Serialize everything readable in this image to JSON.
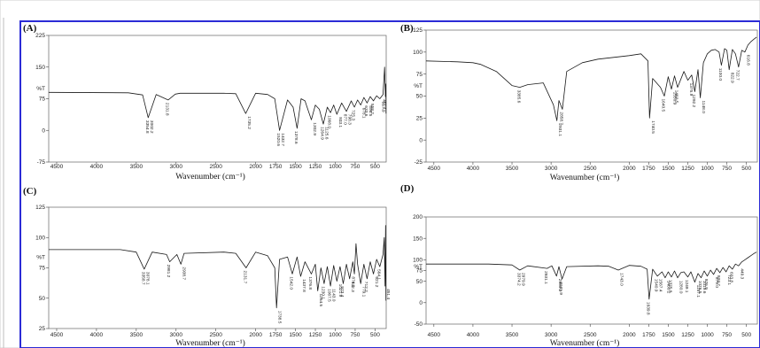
{
  "chart_data": [
    {
      "type": "line",
      "panel": "(A)",
      "xlabel": "Wavenumber (cm⁻¹)",
      "ylabel": "%T",
      "xlim": [
        4600,
        360
      ],
      "ylim": [
        -75,
        225
      ],
      "xticks": [
        "4500",
        "4000",
        "3500",
        "3000",
        "2500",
        "2000",
        "1750",
        "1500",
        "1250",
        "1000",
        "750",
        "500"
      ],
      "xtick_values": [
        4500,
        4000,
        3500,
        3000,
        2500,
        2000,
        1750,
        1500,
        1250,
        1000,
        750,
        500
      ],
      "yticks": [
        "225",
        "150",
        "%T",
        "75",
        "0",
        "-75"
      ],
      "ytick_values": [
        225,
        150,
        100,
        75,
        0,
        -75
      ],
      "baseline": 90,
      "series": [
        {
          "x": [
            4600,
            3600,
            3420,
            3350,
            3250,
            3100,
            3010,
            2950,
            2400,
            2250,
            2125,
            2000,
            1850,
            1760,
            1700,
            1600,
            1530,
            1480,
            1430,
            1380,
            1300,
            1250,
            1200,
            1150,
            1100,
            1060,
            1020,
            980,
            920,
            860,
            800,
            760,
            720,
            680,
            640,
            600,
            560,
            520,
            480,
            440,
            400,
            380,
            370,
            365,
            362
          ],
          "y": [
            90,
            89,
            84,
            30,
            85,
            72,
            86,
            88,
            88,
            87,
            40,
            88,
            85,
            75,
            0,
            72,
            55,
            5,
            75,
            70,
            25,
            60,
            50,
            15,
            55,
            42,
            60,
            38,
            65,
            45,
            70,
            55,
            72,
            60,
            78,
            65,
            80,
            70,
            82,
            75,
            85,
            150,
            80,
            110,
            40
          ]
        }
      ],
      "peaks": [
        "3354.8",
        "3002.2",
        "2131.8",
        "1735.2",
        "1520.6",
        "1432.7",
        "1378.6",
        "1302.9",
        "1264.9",
        "1125.6",
        "1068.0",
        "933.1",
        "877.0",
        "798.3",
        "725.3",
        "678.1",
        "633.6",
        "596.5",
        "558.2",
        "517.9",
        "451.1"
      ]
    },
    {
      "type": "line",
      "panel": "(B)",
      "xlabel": "Wavenumber (cm⁻¹)",
      "ylabel": "%T",
      "xlim": [
        4600,
        360
      ],
      "ylim": [
        -25,
        125
      ],
      "xticks": [
        "4500",
        "4000",
        "3500",
        "3000",
        "2500",
        "2000",
        "1750",
        "1500",
        "1250",
        "1000",
        "750",
        "500"
      ],
      "xtick_values": [
        4500,
        4000,
        3500,
        3000,
        2500,
        2000,
        1750,
        1500,
        1250,
        1000,
        750,
        500
      ],
      "yticks": [
        "125",
        "100",
        "75",
        "%T",
        "50",
        "25",
        "0",
        "-25"
      ],
      "ytick_values": [
        125,
        100,
        75,
        62,
        50,
        25,
        0,
        -25
      ],
      "series": [
        {
          "x": [
            4600,
            4200,
            4000,
            3900,
            3700,
            3500,
            3400,
            3300,
            3100,
            2970,
            2925,
            2900,
            2855,
            2800,
            2600,
            2400,
            2200,
            2000,
            1850,
            1760,
            1740,
            1700,
            1600,
            1550,
            1500,
            1460,
            1420,
            1380,
            1300,
            1250,
            1200,
            1160,
            1120,
            1090,
            1050,
            1000,
            950,
            900,
            850,
            820,
            780,
            750,
            720,
            680,
            640,
            600,
            560,
            520,
            480,
            440,
            400,
            370
          ],
          "y": [
            90,
            89,
            88,
            86,
            78,
            62,
            60,
            63,
            65,
            40,
            22,
            45,
            35,
            78,
            88,
            92,
            94,
            96,
            98,
            90,
            25,
            70,
            60,
            50,
            72,
            58,
            73,
            60,
            78,
            68,
            74,
            55,
            80,
            48,
            88,
            98,
            102,
            103,
            100,
            85,
            104,
            102,
            80,
            103,
            98,
            83,
            102,
            100,
            108,
            112,
            115,
            117
          ]
        }
      ],
      "peaks": [
        "3385.6",
        "2931.1",
        "2858.7",
        "1740.5",
        "1640.5",
        "1550.9",
        "1460.5",
        "1375.9",
        "1292.2",
        "1148.0",
        "1100.0",
        "822.9",
        "722.7",
        "616.8"
      ]
    },
    {
      "type": "line",
      "panel": "(C)",
      "xlabel": "Wavenumber (cm⁻¹)",
      "ylabel": "%T",
      "xlim": [
        4600,
        360
      ],
      "ylim": [
        25,
        125
      ],
      "xticks": [
        "4500",
        "4000",
        "3500",
        "3000",
        "2500",
        "2000",
        "1750",
        "1500",
        "1250",
        "1000",
        "750",
        "500"
      ],
      "xtick_values": [
        4500,
        4000,
        3500,
        3000,
        2500,
        2000,
        1750,
        1500,
        1250,
        1000,
        750,
        500
      ],
      "yticks": [
        "125",
        "100",
        "%T",
        "75",
        "50",
        "25"
      ],
      "ytick_values": [
        125,
        100,
        84,
        75,
        50,
        25
      ],
      "series": [
        {
          "x": [
            4600,
            3700,
            3500,
            3400,
            3300,
            3120,
            3080,
            2990,
            2940,
            2900,
            2400,
            2250,
            2120,
            2000,
            1850,
            1760,
            1738,
            1700,
            1600,
            1540,
            1480,
            1435,
            1380,
            1300,
            1250,
            1220,
            1180,
            1140,
            1100,
            1060,
            1020,
            980,
            940,
            900,
            860,
            820,
            780,
            760,
            740,
            720,
            680,
            640,
            600,
            560,
            520,
            480,
            440,
            400,
            385,
            375,
            368,
            363
          ],
          "y": [
            90,
            90,
            88,
            74,
            88,
            86,
            80,
            86,
            78,
            87,
            88,
            87,
            75,
            88,
            85,
            75,
            42,
            82,
            84,
            70,
            84,
            68,
            80,
            70,
            78,
            56,
            75,
            62,
            76,
            60,
            77,
            64,
            76,
            62,
            78,
            66,
            80,
            70,
            95,
            78,
            62,
            78,
            66,
            80,
            70,
            82,
            76,
            86,
            100,
            60,
            110,
            48
          ]
        }
      ],
      "peaks": [
        "3358.7",
        "3078.1",
        "2981.2",
        "2938.7",
        "2131.7",
        "1738.5",
        "1542.0",
        "1437.8",
        "1376.8",
        "1264.5",
        "1230.1",
        "1143.0",
        "1067.5",
        "1021.9",
        "973.4",
        "932.3",
        "874.1",
        "779.1",
        "712.2",
        "621.2",
        "564.1",
        "451.4"
      ]
    },
    {
      "type": "line",
      "panel": "(D)",
      "xlabel": "Wavenumber (cm⁻¹)",
      "ylabel": "%T",
      "xlim": [
        4600,
        360
      ],
      "ylim": [
        -50,
        200
      ],
      "xticks": [
        "4500",
        "4000",
        "3500",
        "3000",
        "2500",
        "2000",
        "1750",
        "1500",
        "1250",
        "1000",
        "750",
        "500"
      ],
      "xtick_values": [
        4500,
        4000,
        3500,
        3000,
        2500,
        2000,
        1750,
        1500,
        1250,
        1000,
        750,
        500
      ],
      "yticks": [
        "200",
        "150",
        "100",
        "%T",
        "75",
        "50",
        "0",
        "-50"
      ],
      "ytick_values": [
        200,
        150,
        100,
        85,
        75,
        50,
        0,
        -50
      ],
      "series": [
        {
          "x": [
            4600,
            3800,
            3500,
            3400,
            3300,
            3050,
            2990,
            2930,
            2900,
            2860,
            2800,
            2400,
            2260,
            2140,
            2000,
            1850,
            1770,
            1745,
            1700,
            1640,
            1580,
            1540,
            1500,
            1460,
            1420,
            1380,
            1340,
            1300,
            1250,
            1210,
            1160,
            1120,
            1080,
            1040,
            1000,
            960,
            920,
            880,
            840,
            800,
            760,
            720,
            680,
            640,
            600,
            560,
            520,
            480,
            440,
            400,
            370
          ],
          "y": [
            90,
            90,
            88,
            76,
            86,
            80,
            86,
            62,
            84,
            55,
            84,
            86,
            85,
            76,
            87,
            85,
            78,
            8,
            78,
            62,
            72,
            58,
            72,
            60,
            74,
            58,
            70,
            72,
            60,
            72,
            48,
            68,
            58,
            74,
            62,
            76,
            66,
            80,
            70,
            82,
            72,
            86,
            78,
            90,
            86,
            95,
            100,
            105,
            110,
            115,
            118
          ]
        }
      ],
      "peaks": [
        "3374.2",
        "2979.9",
        "2931.1",
        "2860.2",
        "2131.9",
        "1743.0",
        "1639.8",
        "1567.4",
        "1540.9",
        "1460.2",
        "1375.8",
        "1280.0",
        "1249.1",
        "1157.1",
        "1076.5",
        "1019.6",
        "926.9",
        "879.0",
        "803.7",
        "723.1",
        "603.8",
        "449.3"
      ]
    }
  ]
}
